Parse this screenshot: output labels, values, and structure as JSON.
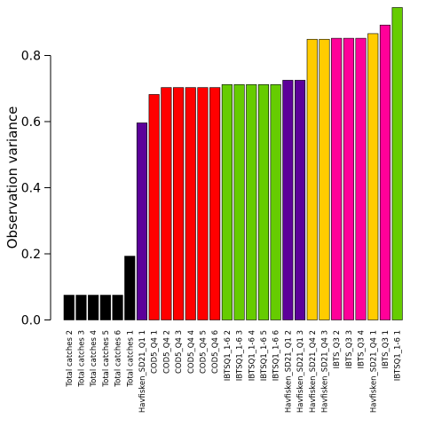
{
  "chart_data": {
    "type": "bar",
    "title": "",
    "xlabel": "",
    "ylabel": "Observation variance",
    "ylim": [
      0,
      0.95
    ],
    "yticks": [
      0.0,
      0.2,
      0.4,
      0.6,
      0.8
    ],
    "ytick_labels": [
      "0.0",
      "0.2",
      "0.4",
      "0.6",
      "0.8"
    ],
    "grid": false,
    "legend": "none",
    "categories": [
      "Total catches 2",
      "Total catches 3",
      "Total catches 4",
      "Total catches 5",
      "Total catches 6",
      "Total catches 1",
      "Havfisken_SD21_Q1 1",
      "COD5_Q4 1",
      "COD5_Q4 2",
      "COD5_Q4 3",
      "COD5_Q4 4",
      "COD5_Q4 5",
      "COD5_Q4 6",
      "IBTSQ1_1-6 2",
      "IBTSQ1_1-6 3",
      "IBTSQ1_1-6 4",
      "IBTSQ1_1-6 5",
      "IBTSQ1_1-6 6",
      "Havfisken_SD21_Q1 2",
      "Havfisken_SD21_Q1 3",
      "Havfisken_SD21_Q4 2",
      "Havfisken_SD21_Q4 3",
      "IBTS_Q3 2",
      "IBTS_Q3 3",
      "IBTS_Q3 4",
      "Havfisken_SD21_Q4 1",
      "IBTS_Q3 1",
      "IBTSQ1_1-6 1"
    ],
    "values": [
      0.075,
      0.075,
      0.075,
      0.075,
      0.075,
      0.193,
      0.596,
      0.682,
      0.703,
      0.703,
      0.703,
      0.703,
      0.703,
      0.712,
      0.712,
      0.712,
      0.712,
      0.712,
      0.725,
      0.725,
      0.849,
      0.849,
      0.852,
      0.852,
      0.852,
      0.866,
      0.892,
      0.945
    ],
    "bar_colors": [
      "#000000",
      "#000000",
      "#000000",
      "#000000",
      "#000000",
      "#000000",
      "#5c0099",
      "#ff0000",
      "#ff0000",
      "#ff0000",
      "#ff0000",
      "#ff0000",
      "#ff0000",
      "#66cc00",
      "#66cc00",
      "#66cc00",
      "#66cc00",
      "#66cc00",
      "#5c0099",
      "#5c0099",
      "#ffcc00",
      "#ffcc00",
      "#ff0099",
      "#ff0099",
      "#ff0099",
      "#ffcc00",
      "#ff0099",
      "#66cc00"
    ]
  }
}
